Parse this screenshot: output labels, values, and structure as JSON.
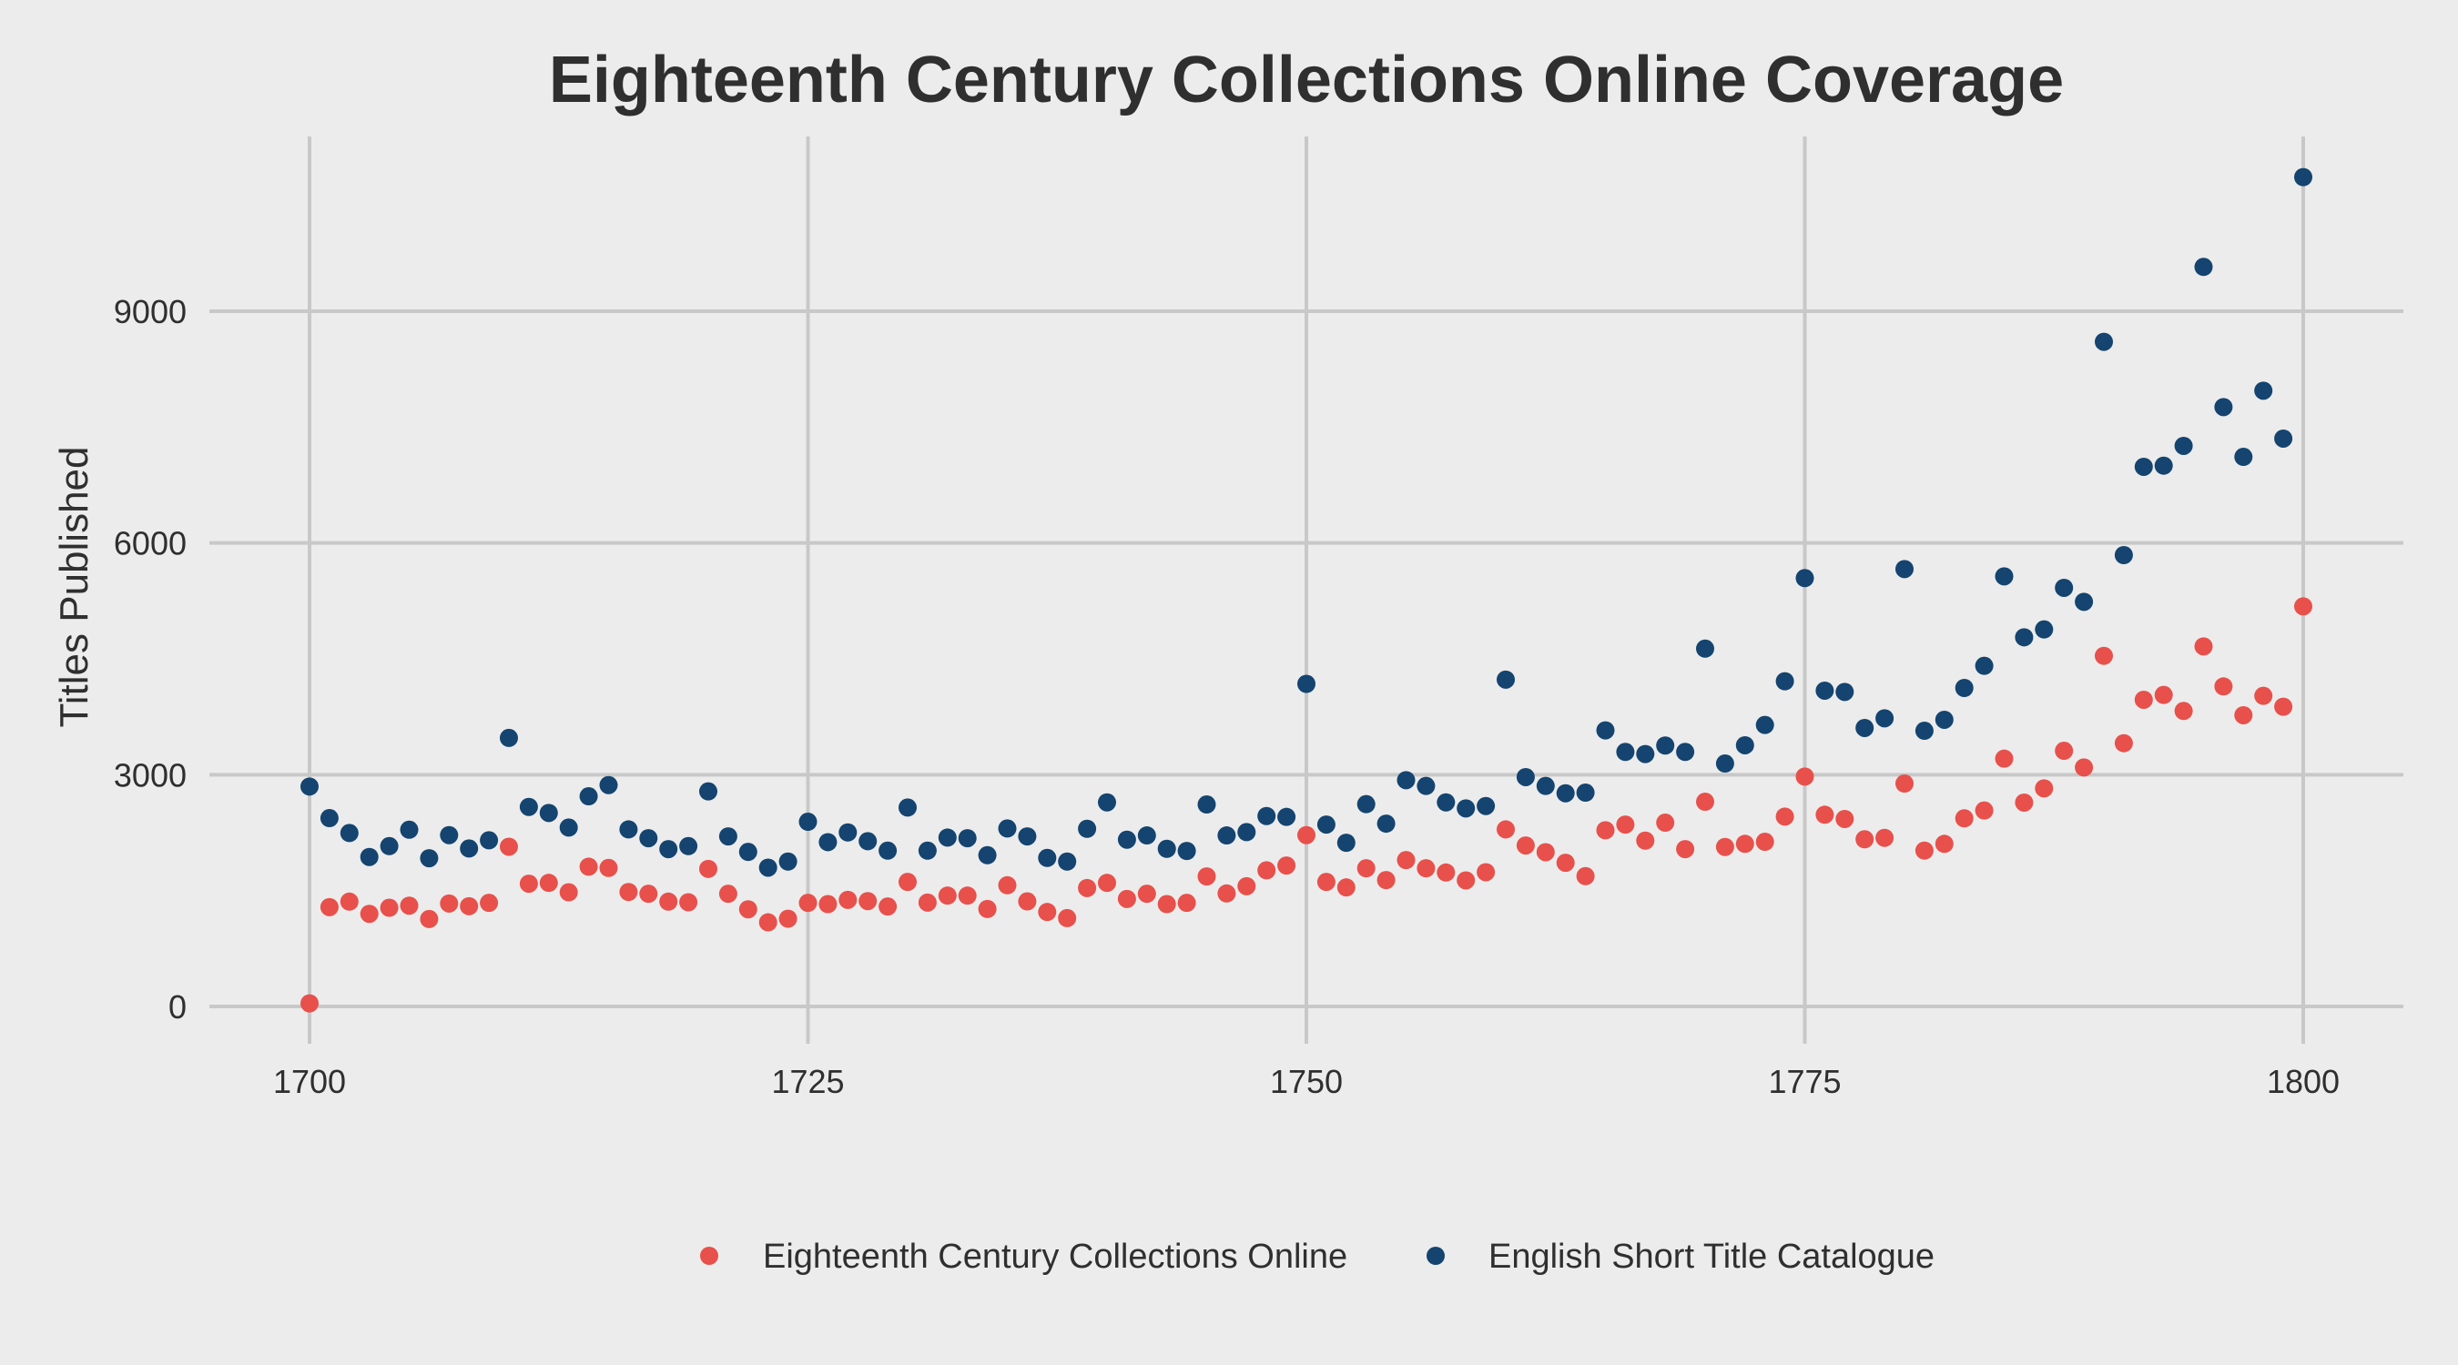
{
  "chart_data": {
    "type": "scatter",
    "title": "Eighteenth Century Collections Online Coverage",
    "xlabel": "",
    "ylabel": "Titles Published",
    "xlim": [
      1695,
      1805
    ],
    "ylim": [
      -450,
      11200
    ],
    "x_ticks": [
      1700,
      1725,
      1750,
      1775,
      1800
    ],
    "y_ticks": [
      0,
      3000,
      6000,
      9000
    ],
    "grid": true,
    "legend_position": "bottom",
    "x": [
      1700,
      1701,
      1702,
      1703,
      1704,
      1705,
      1706,
      1707,
      1708,
      1709,
      1710,
      1711,
      1712,
      1713,
      1714,
      1715,
      1716,
      1717,
      1718,
      1719,
      1720,
      1721,
      1722,
      1723,
      1724,
      1725,
      1726,
      1727,
      1728,
      1729,
      1730,
      1731,
      1732,
      1733,
      1734,
      1735,
      1736,
      1737,
      1738,
      1739,
      1740,
      1741,
      1742,
      1743,
      1744,
      1745,
      1746,
      1747,
      1748,
      1749,
      1750,
      1751,
      1752,
      1753,
      1754,
      1755,
      1756,
      1757,
      1758,
      1759,
      1760,
      1761,
      1762,
      1763,
      1764,
      1765,
      1766,
      1767,
      1768,
      1769,
      1770,
      1771,
      1772,
      1773,
      1774,
      1775,
      1776,
      1777,
      1778,
      1779,
      1780,
      1781,
      1782,
      1783,
      1784,
      1785,
      1786,
      1787,
      1788,
      1789,
      1790,
      1791,
      1792,
      1793,
      1794,
      1795,
      1796,
      1797,
      1798,
      1799,
      1800
    ],
    "series": [
      {
        "name": "Eighteenth Century Collections Online",
        "color": "#e8504b",
        "values": [
          40,
          1286,
          1357,
          1199,
          1278,
          1305,
          1132,
          1333,
          1298,
          1341,
          2068,
          1589,
          1600,
          1478,
          1809,
          1793,
          1482,
          1459,
          1357,
          1349,
          1781,
          1459,
          1258,
          1089,
          1136,
          1341,
          1325,
          1380,
          1364,
          1294,
          1612,
          1345,
          1435,
          1435,
          1262,
          1569,
          1360,
          1223,
          1144,
          1533,
          1600,
          1392,
          1459,
          1325,
          1341,
          1683,
          1463,
          1557,
          1762,
          1825,
          2218,
          1612,
          1541,
          1789,
          1636,
          1895,
          1789,
          1734,
          1632,
          1738,
          2292,
          2084,
          1997,
          1860,
          1687,
          2281,
          2355,
          2147,
          2379,
          2037,
          2650,
          2065,
          2105,
          2132,
          2458,
          2976,
          2482,
          2427,
          2164,
          2183,
          2886,
          2018,
          2105,
          2435,
          2537,
          3208,
          2639,
          2823,
          3310,
          3094,
          4539,
          3408,
          3970,
          4033,
          3825,
          4661,
          4143,
          3770,
          4021,
          3880,
          5179
        ]
      },
      {
        "name": "English Short Title Catalogue",
        "color": "#14446f",
        "values": [
          2847,
          2438,
          2245,
          1935,
          2076,
          2288,
          1919,
          2218,
          2045,
          2151,
          3476,
          2583,
          2505,
          2316,
          2721,
          2866,
          2292,
          2178,
          2037,
          2076,
          2784,
          2202,
          2001,
          1797,
          1876,
          2391,
          2127,
          2253,
          2139,
          2017,
          2575,
          2017,
          2186,
          2178,
          1958,
          2304,
          2202,
          1923,
          1876,
          2300,
          2642,
          2159,
          2214,
          2041,
          2013,
          2615,
          2214,
          2257,
          2465,
          2454,
          4176,
          2355,
          2119,
          2619,
          2367,
          2929,
          2855,
          2642,
          2564,
          2595,
          4231,
          2969,
          2855,
          2760,
          2768,
          3574,
          3295,
          3268,
          3378,
          3295,
          4632,
          3145,
          3381,
          3644,
          4210,
          5545,
          4088,
          4072,
          3605,
          3730,
          5662,
          3569,
          3711,
          4123,
          4410,
          5568,
          4779,
          4881,
          5419,
          5238,
          8604,
          5843,
          6986,
          7001,
          7257,
          9574,
          7759,
          7115,
          7971,
          7351,
          10736
        ]
      }
    ]
  }
}
